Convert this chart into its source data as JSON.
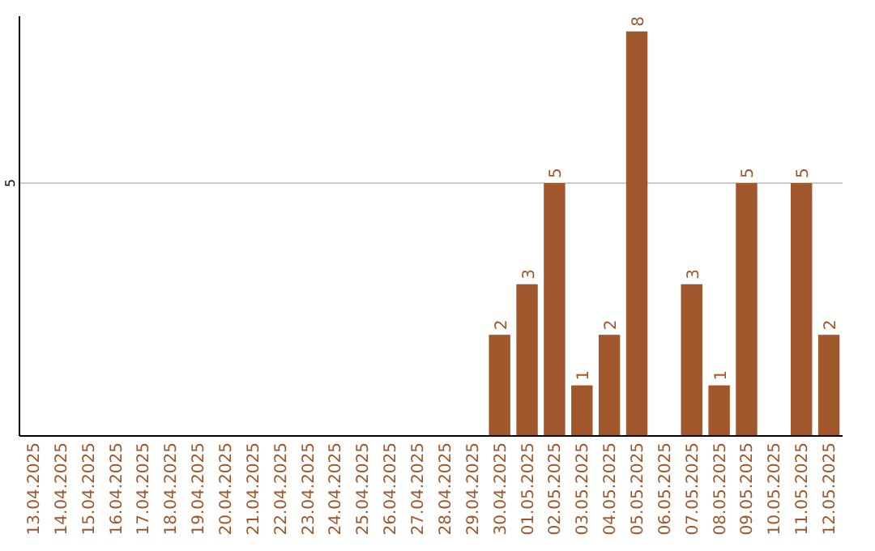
{
  "chart_data": {
    "type": "bar",
    "categories": [
      "13.04.2025",
      "14.04.2025",
      "15.04.2025",
      "16.04.2025",
      "17.04.2025",
      "18.04.2025",
      "19.04.2025",
      "20.04.2025",
      "21.04.2025",
      "22.04.2025",
      "23.04.2025",
      "24.04.2025",
      "25.04.2025",
      "26.04.2025",
      "27.04.2025",
      "28.04.2025",
      "29.04.2025",
      "30.04.2025",
      "01.05.2025",
      "02.05.2025",
      "03.05.2025",
      "04.05.2025",
      "05.05.2025",
      "06.05.2025",
      "07.05.2025",
      "08.05.2025",
      "09.05.2025",
      "10.05.2025",
      "11.05.2025",
      "12.05.2025"
    ],
    "values": [
      null,
      null,
      null,
      null,
      null,
      null,
      null,
      null,
      null,
      null,
      null,
      null,
      null,
      null,
      null,
      null,
      null,
      2,
      3,
      5,
      1,
      2,
      8,
      null,
      3,
      1,
      5,
      null,
      5,
      2
    ],
    "data_labels": true,
    "color": "#a0572c",
    "ylim": [
      0,
      8.3
    ],
    "ref_lines": [
      {
        "axis": "y",
        "value": 5,
        "label": "5",
        "color": "#cccccc"
      }
    ]
  }
}
